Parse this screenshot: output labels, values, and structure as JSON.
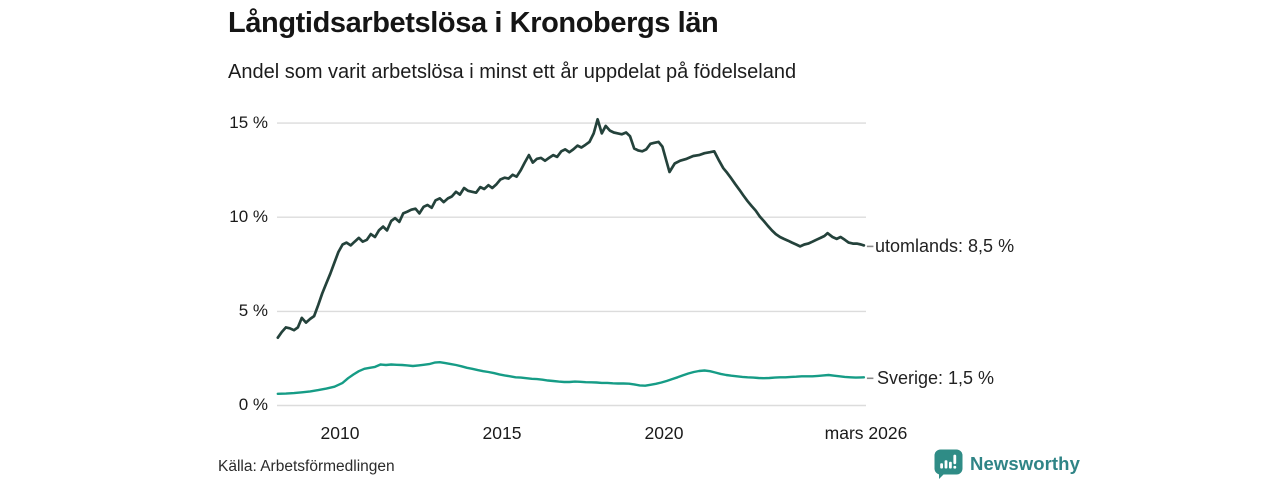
{
  "header": {
    "title": "Långtidsarbetslösa i Kronobergs län",
    "subtitle": "Andel som varit arbetslösa i minst ett år uppdelat på födelseland"
  },
  "footer": {
    "source": "Källa: Arbetsförmedlingen",
    "brand": "Newsworthy"
  },
  "colors": {
    "dark_line": "#24423b",
    "teal_line": "#169c86",
    "brand_teal": "#2f8486",
    "brand_logo": "#2f8c86",
    "grid": "#dcdcdc",
    "connector": "#8c8c8c",
    "text": "#1a1a1a"
  },
  "chart_data": {
    "type": "line",
    "title": "Långtidsarbetslösa i Kronobergs län",
    "subtitle": "Andel som varit arbetslösa i minst ett år uppdelat på födelseland",
    "unit": "%",
    "grid": true,
    "legend_position": "end-of-line-labels-right",
    "x_axis": {
      "range": [
        2008.08,
        2026.17
      ],
      "ticks": [
        {
          "value": 2010,
          "label": "2010"
        },
        {
          "value": 2015,
          "label": "2015"
        },
        {
          "value": 2020,
          "label": "2020"
        },
        {
          "value": 2026.17,
          "label": "mars 2026"
        }
      ]
    },
    "y_axis": {
      "range": [
        0,
        15.5
      ],
      "ticks": [
        {
          "value": 15,
          "label": "15 %"
        },
        {
          "value": 10,
          "label": "10 %"
        },
        {
          "value": 5,
          "label": "5 %"
        },
        {
          "value": 0,
          "label": "0 %"
        }
      ]
    },
    "series": [
      {
        "name": "utomlands",
        "color": "#24423b",
        "end_label": "utomlands: 8,5 %",
        "last_value_label": "8,5 %",
        "points": [
          [
            2008.08,
            3.6
          ],
          [
            2008.2,
            3.9
          ],
          [
            2008.33,
            4.15
          ],
          [
            2008.45,
            4.1
          ],
          [
            2008.58,
            4.0
          ],
          [
            2008.7,
            4.15
          ],
          [
            2008.82,
            4.65
          ],
          [
            2008.95,
            4.4
          ],
          [
            2009.08,
            4.6
          ],
          [
            2009.2,
            4.75
          ],
          [
            2009.33,
            5.35
          ],
          [
            2009.45,
            5.95
          ],
          [
            2009.58,
            6.5
          ],
          [
            2009.7,
            7.0
          ],
          [
            2009.83,
            7.6
          ],
          [
            2009.95,
            8.15
          ],
          [
            2010.08,
            8.55
          ],
          [
            2010.2,
            8.65
          ],
          [
            2010.33,
            8.5
          ],
          [
            2010.45,
            8.7
          ],
          [
            2010.58,
            8.9
          ],
          [
            2010.7,
            8.7
          ],
          [
            2010.83,
            8.8
          ],
          [
            2010.95,
            9.1
          ],
          [
            2011.08,
            8.95
          ],
          [
            2011.2,
            9.3
          ],
          [
            2011.33,
            9.5
          ],
          [
            2011.45,
            9.3
          ],
          [
            2011.58,
            9.8
          ],
          [
            2011.7,
            9.95
          ],
          [
            2011.83,
            9.75
          ],
          [
            2011.95,
            10.2
          ],
          [
            2012.08,
            10.3
          ],
          [
            2012.2,
            10.4
          ],
          [
            2012.33,
            10.45
          ],
          [
            2012.45,
            10.2
          ],
          [
            2012.58,
            10.55
          ],
          [
            2012.7,
            10.65
          ],
          [
            2012.83,
            10.5
          ],
          [
            2012.95,
            10.9
          ],
          [
            2013.08,
            11.0
          ],
          [
            2013.2,
            10.8
          ],
          [
            2013.33,
            11.0
          ],
          [
            2013.45,
            11.1
          ],
          [
            2013.58,
            11.35
          ],
          [
            2013.7,
            11.2
          ],
          [
            2013.83,
            11.55
          ],
          [
            2013.95,
            11.4
          ],
          [
            2014.08,
            11.35
          ],
          [
            2014.2,
            11.3
          ],
          [
            2014.33,
            11.6
          ],
          [
            2014.45,
            11.5
          ],
          [
            2014.58,
            11.7
          ],
          [
            2014.7,
            11.55
          ],
          [
            2014.83,
            11.75
          ],
          [
            2014.95,
            12.0
          ],
          [
            2015.08,
            12.1
          ],
          [
            2015.2,
            12.05
          ],
          [
            2015.33,
            12.25
          ],
          [
            2015.45,
            12.15
          ],
          [
            2015.58,
            12.5
          ],
          [
            2015.7,
            12.9
          ],
          [
            2015.83,
            13.3
          ],
          [
            2015.95,
            12.9
          ],
          [
            2016.08,
            13.1
          ],
          [
            2016.2,
            13.15
          ],
          [
            2016.33,
            13.0
          ],
          [
            2016.45,
            13.15
          ],
          [
            2016.58,
            13.3
          ],
          [
            2016.7,
            13.2
          ],
          [
            2016.83,
            13.5
          ],
          [
            2016.95,
            13.6
          ],
          [
            2017.08,
            13.45
          ],
          [
            2017.2,
            13.6
          ],
          [
            2017.33,
            13.8
          ],
          [
            2017.45,
            13.7
          ],
          [
            2017.58,
            13.85
          ],
          [
            2017.7,
            14.0
          ],
          [
            2017.83,
            14.45
          ],
          [
            2017.95,
            15.2
          ],
          [
            2018.08,
            14.45
          ],
          [
            2018.2,
            14.85
          ],
          [
            2018.33,
            14.6
          ],
          [
            2018.45,
            14.5
          ],
          [
            2018.58,
            14.45
          ],
          [
            2018.7,
            14.4
          ],
          [
            2018.83,
            14.5
          ],
          [
            2018.95,
            14.3
          ],
          [
            2019.08,
            13.65
          ],
          [
            2019.2,
            13.55
          ],
          [
            2019.33,
            13.5
          ],
          [
            2019.45,
            13.6
          ],
          [
            2019.58,
            13.9
          ],
          [
            2019.7,
            13.95
          ],
          [
            2019.83,
            14.0
          ],
          [
            2019.95,
            13.75
          ],
          [
            2020.08,
            12.95
          ],
          [
            2020.17,
            12.4
          ],
          [
            2020.33,
            12.85
          ],
          [
            2020.5,
            13.0
          ],
          [
            2020.7,
            13.1
          ],
          [
            2020.9,
            13.25
          ],
          [
            2021.08,
            13.3
          ],
          [
            2021.25,
            13.4
          ],
          [
            2021.42,
            13.45
          ],
          [
            2021.55,
            13.5
          ],
          [
            2021.7,
            13.0
          ],
          [
            2021.83,
            12.6
          ],
          [
            2021.95,
            12.35
          ],
          [
            2022.08,
            12.05
          ],
          [
            2022.2,
            11.75
          ],
          [
            2022.33,
            11.45
          ],
          [
            2022.45,
            11.15
          ],
          [
            2022.58,
            10.85
          ],
          [
            2022.7,
            10.6
          ],
          [
            2022.83,
            10.35
          ],
          [
            2022.95,
            10.05
          ],
          [
            2023.08,
            9.8
          ],
          [
            2023.2,
            9.55
          ],
          [
            2023.33,
            9.3
          ],
          [
            2023.45,
            9.1
          ],
          [
            2023.58,
            8.95
          ],
          [
            2023.7,
            8.85
          ],
          [
            2023.83,
            8.75
          ],
          [
            2023.95,
            8.65
          ],
          [
            2024.08,
            8.55
          ],
          [
            2024.2,
            8.45
          ],
          [
            2024.33,
            8.55
          ],
          [
            2024.45,
            8.6
          ],
          [
            2024.58,
            8.7
          ],
          [
            2024.7,
            8.8
          ],
          [
            2024.83,
            8.9
          ],
          [
            2024.95,
            9.0
          ],
          [
            2025.05,
            9.15
          ],
          [
            2025.2,
            8.95
          ],
          [
            2025.33,
            8.85
          ],
          [
            2025.45,
            8.95
          ],
          [
            2025.58,
            8.8
          ],
          [
            2025.7,
            8.65
          ],
          [
            2025.83,
            8.6
          ],
          [
            2025.95,
            8.6
          ],
          [
            2026.08,
            8.55
          ],
          [
            2026.17,
            8.5
          ]
        ]
      },
      {
        "name": "Sverige",
        "color": "#169c86",
        "end_label": "Sverige: 1,5 %",
        "last_value_label": "1,5 %",
        "points": [
          [
            2008.08,
            0.62
          ],
          [
            2008.33,
            0.63
          ],
          [
            2008.58,
            0.66
          ],
          [
            2008.83,
            0.7
          ],
          [
            2009.08,
            0.75
          ],
          [
            2009.33,
            0.82
          ],
          [
            2009.58,
            0.9
          ],
          [
            2009.83,
            1.0
          ],
          [
            2010.08,
            1.2
          ],
          [
            2010.25,
            1.45
          ],
          [
            2010.42,
            1.65
          ],
          [
            2010.58,
            1.82
          ],
          [
            2010.75,
            1.95
          ],
          [
            2010.92,
            2.0
          ],
          [
            2011.08,
            2.05
          ],
          [
            2011.25,
            2.18
          ],
          [
            2011.42,
            2.15
          ],
          [
            2011.58,
            2.18
          ],
          [
            2011.75,
            2.16
          ],
          [
            2011.92,
            2.15
          ],
          [
            2012.08,
            2.13
          ],
          [
            2012.25,
            2.1
          ],
          [
            2012.42,
            2.13
          ],
          [
            2012.58,
            2.16
          ],
          [
            2012.75,
            2.2
          ],
          [
            2012.92,
            2.28
          ],
          [
            2013.08,
            2.3
          ],
          [
            2013.25,
            2.25
          ],
          [
            2013.42,
            2.2
          ],
          [
            2013.58,
            2.15
          ],
          [
            2013.75,
            2.08
          ],
          [
            2013.92,
            2.0
          ],
          [
            2014.08,
            1.95
          ],
          [
            2014.25,
            1.88
          ],
          [
            2014.42,
            1.82
          ],
          [
            2014.58,
            1.78
          ],
          [
            2014.75,
            1.72
          ],
          [
            2014.92,
            1.65
          ],
          [
            2015.08,
            1.6
          ],
          [
            2015.25,
            1.55
          ],
          [
            2015.42,
            1.5
          ],
          [
            2015.58,
            1.48
          ],
          [
            2015.75,
            1.45
          ],
          [
            2015.92,
            1.42
          ],
          [
            2016.08,
            1.4
          ],
          [
            2016.25,
            1.37
          ],
          [
            2016.42,
            1.33
          ],
          [
            2016.58,
            1.3
          ],
          [
            2016.75,
            1.27
          ],
          [
            2016.92,
            1.25
          ],
          [
            2017.08,
            1.25
          ],
          [
            2017.25,
            1.27
          ],
          [
            2017.42,
            1.26
          ],
          [
            2017.58,
            1.24
          ],
          [
            2017.75,
            1.23
          ],
          [
            2017.92,
            1.22
          ],
          [
            2018.08,
            1.2
          ],
          [
            2018.25,
            1.2
          ],
          [
            2018.42,
            1.18
          ],
          [
            2018.58,
            1.17
          ],
          [
            2018.75,
            1.17
          ],
          [
            2018.92,
            1.16
          ],
          [
            2019.08,
            1.12
          ],
          [
            2019.25,
            1.07
          ],
          [
            2019.42,
            1.05
          ],
          [
            2019.58,
            1.1
          ],
          [
            2019.75,
            1.15
          ],
          [
            2019.92,
            1.22
          ],
          [
            2020.08,
            1.3
          ],
          [
            2020.25,
            1.4
          ],
          [
            2020.42,
            1.5
          ],
          [
            2020.58,
            1.6
          ],
          [
            2020.75,
            1.7
          ],
          [
            2020.92,
            1.78
          ],
          [
            2021.08,
            1.83
          ],
          [
            2021.25,
            1.86
          ],
          [
            2021.42,
            1.82
          ],
          [
            2021.58,
            1.75
          ],
          [
            2021.75,
            1.68
          ],
          [
            2021.92,
            1.62
          ],
          [
            2022.08,
            1.58
          ],
          [
            2022.25,
            1.55
          ],
          [
            2022.42,
            1.52
          ],
          [
            2022.58,
            1.5
          ],
          [
            2022.75,
            1.48
          ],
          [
            2022.92,
            1.46
          ],
          [
            2023.08,
            1.45
          ],
          [
            2023.25,
            1.46
          ],
          [
            2023.42,
            1.48
          ],
          [
            2023.58,
            1.5
          ],
          [
            2023.75,
            1.5
          ],
          [
            2023.92,
            1.52
          ],
          [
            2024.08,
            1.53
          ],
          [
            2024.25,
            1.55
          ],
          [
            2024.42,
            1.55
          ],
          [
            2024.58,
            1.55
          ],
          [
            2024.75,
            1.57
          ],
          [
            2024.92,
            1.6
          ],
          [
            2025.08,
            1.62
          ],
          [
            2025.25,
            1.58
          ],
          [
            2025.42,
            1.55
          ],
          [
            2025.58,
            1.52
          ],
          [
            2025.75,
            1.5
          ],
          [
            2025.92,
            1.48
          ],
          [
            2026.08,
            1.49
          ],
          [
            2026.17,
            1.5
          ]
        ]
      }
    ]
  }
}
